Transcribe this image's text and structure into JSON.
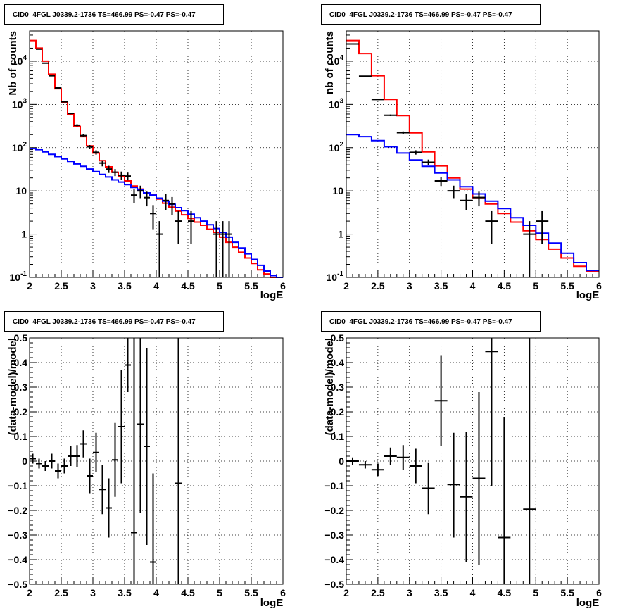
{
  "chart_data": [
    {
      "type": "line",
      "title": "CID0_4FGL J0339.2-1736 TS=466.99 PS=-0.47 PS=-0.47",
      "xlabel": "logE",
      "ylabel": "Nb of counts",
      "xlim": [
        2,
        6
      ],
      "ylim": [
        0.1,
        50000
      ],
      "yscale": "log",
      "grid": true,
      "x_ticks": [
        "2",
        "2.5",
        "3",
        "3.5",
        "4",
        "4.5",
        "5",
        "5.5",
        "6"
      ],
      "y_ticks": [
        "10^-1",
        "1",
        "10",
        "10^2",
        "10^3",
        "10^4"
      ],
      "bin_edges": [
        2.0,
        2.1,
        2.2,
        2.3,
        2.4,
        2.5,
        2.6,
        2.7,
        2.8,
        2.9,
        3.0,
        3.1,
        3.2,
        3.3,
        3.4,
        3.5,
        3.6,
        3.7,
        3.8,
        3.9,
        4.0,
        4.1,
        4.2,
        4.3,
        4.4,
        4.5,
        4.6,
        4.7,
        4.8,
        4.9,
        5.0,
        5.1,
        5.2,
        5.3,
        5.4,
        5.5,
        5.6,
        5.7,
        5.8,
        5.9,
        6.0
      ],
      "series": [
        {
          "color": "#ff0000",
          "style": "step",
          "values": [
            30000,
            20000,
            10000,
            5000,
            2300,
            1100,
            600,
            310,
            180,
            110,
            75,
            50,
            36,
            27,
            22,
            17,
            13,
            11,
            9,
            8,
            6.5,
            5.2,
            4.2,
            3.4,
            2.8,
            2.3,
            1.9,
            1.6,
            1.3,
            1.1,
            0.85,
            0.65,
            0.5,
            0.38,
            0.28,
            0.21,
            0.15,
            0.12,
            0.1,
            0.1
          ]
        },
        {
          "color": "#0000ff",
          "style": "step",
          "values": [
            95,
            90,
            80,
            70,
            62,
            55,
            48,
            42,
            37,
            32,
            28,
            24,
            21,
            18,
            16,
            14,
            12,
            10.5,
            9,
            8,
            6.8,
            5.8,
            4.9,
            4.1,
            3.5,
            2.9,
            2.4,
            2.0,
            1.65,
            1.35,
            1.1,
            0.85,
            0.65,
            0.48,
            0.35,
            0.26,
            0.19,
            0.14,
            0.11,
            0.1
          ]
        }
      ],
      "points": [
        {
          "x": 2.15,
          "y": 19000,
          "lo": 18800,
          "hi": 19200
        },
        {
          "x": 2.25,
          "y": 9000,
          "lo": 8900,
          "hi": 9100
        },
        {
          "x": 2.35,
          "y": 4600,
          "lo": 4530,
          "hi": 4670
        },
        {
          "x": 2.45,
          "y": 2400,
          "lo": 2350,
          "hi": 2450
        },
        {
          "x": 2.55,
          "y": 1150,
          "lo": 1116,
          "hi": 1184
        },
        {
          "x": 2.65,
          "y": 620,
          "lo": 595,
          "hi": 645
        },
        {
          "x": 2.75,
          "y": 330,
          "lo": 312,
          "hi": 348
        },
        {
          "x": 2.85,
          "y": 190,
          "lo": 176,
          "hi": 204
        },
        {
          "x": 2.95,
          "y": 105,
          "lo": 95,
          "hi": 115
        },
        {
          "x": 3.05,
          "y": 78,
          "lo": 69,
          "hi": 87
        },
        {
          "x": 3.15,
          "y": 44,
          "lo": 37,
          "hi": 51
        },
        {
          "x": 3.25,
          "y": 32,
          "lo": 26,
          "hi": 38
        },
        {
          "x": 3.35,
          "y": 27,
          "lo": 22,
          "hi": 32
        },
        {
          "x": 3.45,
          "y": 23,
          "lo": 18,
          "hi": 28
        },
        {
          "x": 3.55,
          "y": 22,
          "lo": 17.5,
          "hi": 26.5
        },
        {
          "x": 3.65,
          "y": 8,
          "lo": 5.2,
          "hi": 10.8
        },
        {
          "x": 3.75,
          "y": 10,
          "lo": 6.8,
          "hi": 13.2
        },
        {
          "x": 3.85,
          "y": 7,
          "lo": 4.4,
          "hi": 9.6
        },
        {
          "x": 3.95,
          "y": 3,
          "lo": 1.3,
          "hi": 4.7
        },
        {
          "x": 4.05,
          "y": 1,
          "lo": 0.1,
          "hi": 2
        },
        {
          "x": 4.15,
          "y": 6,
          "lo": 3.6,
          "hi": 8.4
        },
        {
          "x": 4.25,
          "y": 5,
          "lo": 2.8,
          "hi": 7.2
        },
        {
          "x": 4.35,
          "y": 2,
          "lo": 0.6,
          "hi": 3.4
        },
        {
          "x": 4.55,
          "y": 2,
          "lo": 0.6,
          "hi": 3.4
        },
        {
          "x": 4.95,
          "y": 1,
          "lo": 0.1,
          "hi": 2
        },
        {
          "x": 5.05,
          "y": 1,
          "lo": 0.1,
          "hi": 2
        },
        {
          "x": 5.15,
          "y": 1,
          "lo": 0.1,
          "hi": 2
        }
      ],
      "point_halfwidth": 0.05
    },
    {
      "type": "line",
      "title": "CID0_4FGL J0339.2-1736 TS=466.99 PS=-0.47 PS=-0.47",
      "xlabel": "logE",
      "ylabel": "nb of counts",
      "xlim": [
        2,
        6
      ],
      "ylim": [
        0.1,
        50000
      ],
      "yscale": "log",
      "grid": true,
      "x_ticks": [
        "2",
        "2.5",
        "3",
        "3.5",
        "4",
        "4.5",
        "5",
        "5.5",
        "6"
      ],
      "y_ticks": [
        "10^-1",
        "1",
        "10",
        "10^2",
        "10^3",
        "10^4"
      ],
      "bin_edges": [
        2.0,
        2.2,
        2.4,
        2.6,
        2.8,
        3.0,
        3.2,
        3.4,
        3.6,
        3.8,
        4.0,
        4.2,
        4.4,
        4.6,
        4.8,
        5.0,
        5.2,
        5.4,
        5.6,
        5.8,
        6.0
      ],
      "series": [
        {
          "color": "#ff0000",
          "style": "step",
          "values": [
            30000,
            15000,
            4600,
            1300,
            550,
            220,
            80,
            38,
            20,
            11,
            7,
            5,
            3,
            1.9,
            1.2,
            0.75,
            0.45,
            0.28,
            0.18,
            0.14
          ]
        },
        {
          "color": "#0000ff",
          "style": "step",
          "values": [
            200,
            180,
            145,
            105,
            75,
            52,
            37,
            26,
            18,
            12.5,
            8.5,
            5.8,
            3.9,
            2.4,
            1.6,
            1.05,
            0.62,
            0.36,
            0.22,
            0.145
          ]
        }
      ],
      "points": [
        {
          "x": 2.1,
          "y": 25000,
          "lo": 24840,
          "hi": 25160
        },
        {
          "x": 2.3,
          "y": 4500,
          "lo": 4433,
          "hi": 4567
        },
        {
          "x": 2.5,
          "y": 1300,
          "lo": 1264,
          "hi": 1336
        },
        {
          "x": 2.7,
          "y": 560,
          "lo": 536,
          "hi": 584
        },
        {
          "x": 2.9,
          "y": 222,
          "lo": 207,
          "hi": 237
        },
        {
          "x": 3.1,
          "y": 78,
          "lo": 69,
          "hi": 87
        },
        {
          "x": 3.3,
          "y": 46,
          "lo": 39,
          "hi": 53
        },
        {
          "x": 3.5,
          "y": 17,
          "lo": 13,
          "hi": 21
        },
        {
          "x": 3.7,
          "y": 10,
          "lo": 6.8,
          "hi": 13.2
        },
        {
          "x": 3.9,
          "y": 6,
          "lo": 3.6,
          "hi": 8.4
        },
        {
          "x": 4.1,
          "y": 7,
          "lo": 4.4,
          "hi": 9.6
        },
        {
          "x": 4.3,
          "y": 2,
          "lo": 0.6,
          "hi": 3.4
        },
        {
          "x": 4.9,
          "y": 1,
          "lo": 0.1,
          "hi": 2
        },
        {
          "x": 5.1,
          "y": 2,
          "lo": 0.6,
          "hi": 3.4
        }
      ],
      "point_halfwidth": 0.1
    },
    {
      "type": "scatter",
      "title": "CID0_4FGL J0339.2-1736 TS=466.99 PS=-0.47 PS=-0.47",
      "xlabel": "logE",
      "ylabel": "(data-model)/model",
      "xlim": [
        2,
        6
      ],
      "ylim": [
        -0.5,
        0.5
      ],
      "grid": true,
      "x_ticks": [
        "2",
        "2.5",
        "3",
        "3.5",
        "4",
        "4.5",
        "5",
        "5.5",
        "6"
      ],
      "y_ticks": [
        "−0.5",
        "−0.4",
        "−0.3",
        "−0.2",
        "−0.1",
        "0",
        "0.1",
        "0.2",
        "0.3",
        "0.4",
        "0.5"
      ],
      "points": [
        {
          "x": 2.05,
          "y": 0.01,
          "lo": -0.01,
          "hi": 0.03
        },
        {
          "x": 2.15,
          "y": -0.01,
          "lo": -0.03,
          "hi": 0.01
        },
        {
          "x": 2.25,
          "y": -0.02,
          "lo": -0.04,
          "hi": 0.0
        },
        {
          "x": 2.35,
          "y": 0.0,
          "lo": -0.03,
          "hi": 0.03
        },
        {
          "x": 2.45,
          "y": -0.04,
          "lo": -0.07,
          "hi": -0.01
        },
        {
          "x": 2.55,
          "y": -0.02,
          "lo": -0.05,
          "hi": 0.01
        },
        {
          "x": 2.65,
          "y": 0.02,
          "lo": -0.02,
          "hi": 0.06
        },
        {
          "x": 2.75,
          "y": 0.02,
          "lo": -0.025,
          "hi": 0.065
        },
        {
          "x": 2.85,
          "y": 0.07,
          "lo": 0.015,
          "hi": 0.125
        },
        {
          "x": 2.95,
          "y": -0.06,
          "lo": -0.13,
          "hi": 0.01
        },
        {
          "x": 3.05,
          "y": 0.035,
          "lo": -0.045,
          "hi": 0.115
        },
        {
          "x": 3.15,
          "y": -0.115,
          "lo": -0.215,
          "hi": -0.015
        },
        {
          "x": 3.25,
          "y": -0.19,
          "lo": -0.31,
          "hi": -0.07
        },
        {
          "x": 3.35,
          "y": 0.005,
          "lo": -0.145,
          "hi": 0.155
        },
        {
          "x": 3.45,
          "y": 0.14,
          "lo": -0.09,
          "hi": 0.37
        },
        {
          "x": 3.55,
          "y": 0.39,
          "lo": 0.28,
          "hi": 0.5
        },
        {
          "x": 3.65,
          "y": -0.29,
          "lo": -0.5,
          "hi": 0.5
        },
        {
          "x": 3.75,
          "y": 0.15,
          "lo": -0.21,
          "hi": 0.5
        },
        {
          "x": 3.85,
          "y": 0.06,
          "lo": -0.34,
          "hi": 0.46
        },
        {
          "x": 3.95,
          "y": -0.41,
          "lo": -0.5,
          "hi": -0.05
        },
        {
          "x": 4.35,
          "y": -0.09,
          "lo": -0.5,
          "hi": 0.5
        }
      ],
      "point_halfwidth": 0.05
    },
    {
      "type": "scatter",
      "title": "CID0_4FGL J0339.2-1736 TS=466.99 PS=-0.47 PS=-0.47",
      "xlabel": "logE",
      "ylabel": "(data-model)/model",
      "xlim": [
        2,
        6
      ],
      "ylim": [
        -0.5,
        0.5
      ],
      "grid": true,
      "x_ticks": [
        "2",
        "2.5",
        "3",
        "3.5",
        "4",
        "4.5",
        "5",
        "5.5",
        "6"
      ],
      "y_ticks": [
        "−0.5",
        "−0.4",
        "−0.3",
        "−0.2",
        "−0.1",
        "0",
        "0.1",
        "0.2",
        "0.3",
        "0.4",
        "0.5"
      ],
      "points": [
        {
          "x": 2.1,
          "y": 0.0,
          "lo": -0.015,
          "hi": 0.015
        },
        {
          "x": 2.3,
          "y": -0.015,
          "lo": -0.03,
          "hi": 0.0
        },
        {
          "x": 2.5,
          "y": -0.035,
          "lo": -0.06,
          "hi": -0.01
        },
        {
          "x": 2.7,
          "y": 0.02,
          "lo": -0.015,
          "hi": 0.055
        },
        {
          "x": 2.9,
          "y": 0.015,
          "lo": -0.035,
          "hi": 0.065
        },
        {
          "x": 3.1,
          "y": -0.02,
          "lo": -0.09,
          "hi": 0.05
        },
        {
          "x": 3.3,
          "y": -0.11,
          "lo": -0.215,
          "hi": -0.005
        },
        {
          "x": 3.5,
          "y": 0.245,
          "lo": 0.06,
          "hi": 0.43
        },
        {
          "x": 3.7,
          "y": -0.095,
          "lo": -0.31,
          "hi": 0.115
        },
        {
          "x": 3.9,
          "y": -0.145,
          "lo": -0.41,
          "hi": 0.12
        },
        {
          "x": 4.1,
          "y": -0.07,
          "lo": -0.42,
          "hi": 0.28
        },
        {
          "x": 4.3,
          "y": 0.445,
          "lo": -0.1,
          "hi": 0.5
        },
        {
          "x": 4.5,
          "y": -0.31,
          "lo": -0.5,
          "hi": 0.18
        },
        {
          "x": 4.9,
          "y": -0.195,
          "lo": -0.5,
          "hi": 0.5
        }
      ],
      "point_halfwidth": 0.1
    }
  ]
}
